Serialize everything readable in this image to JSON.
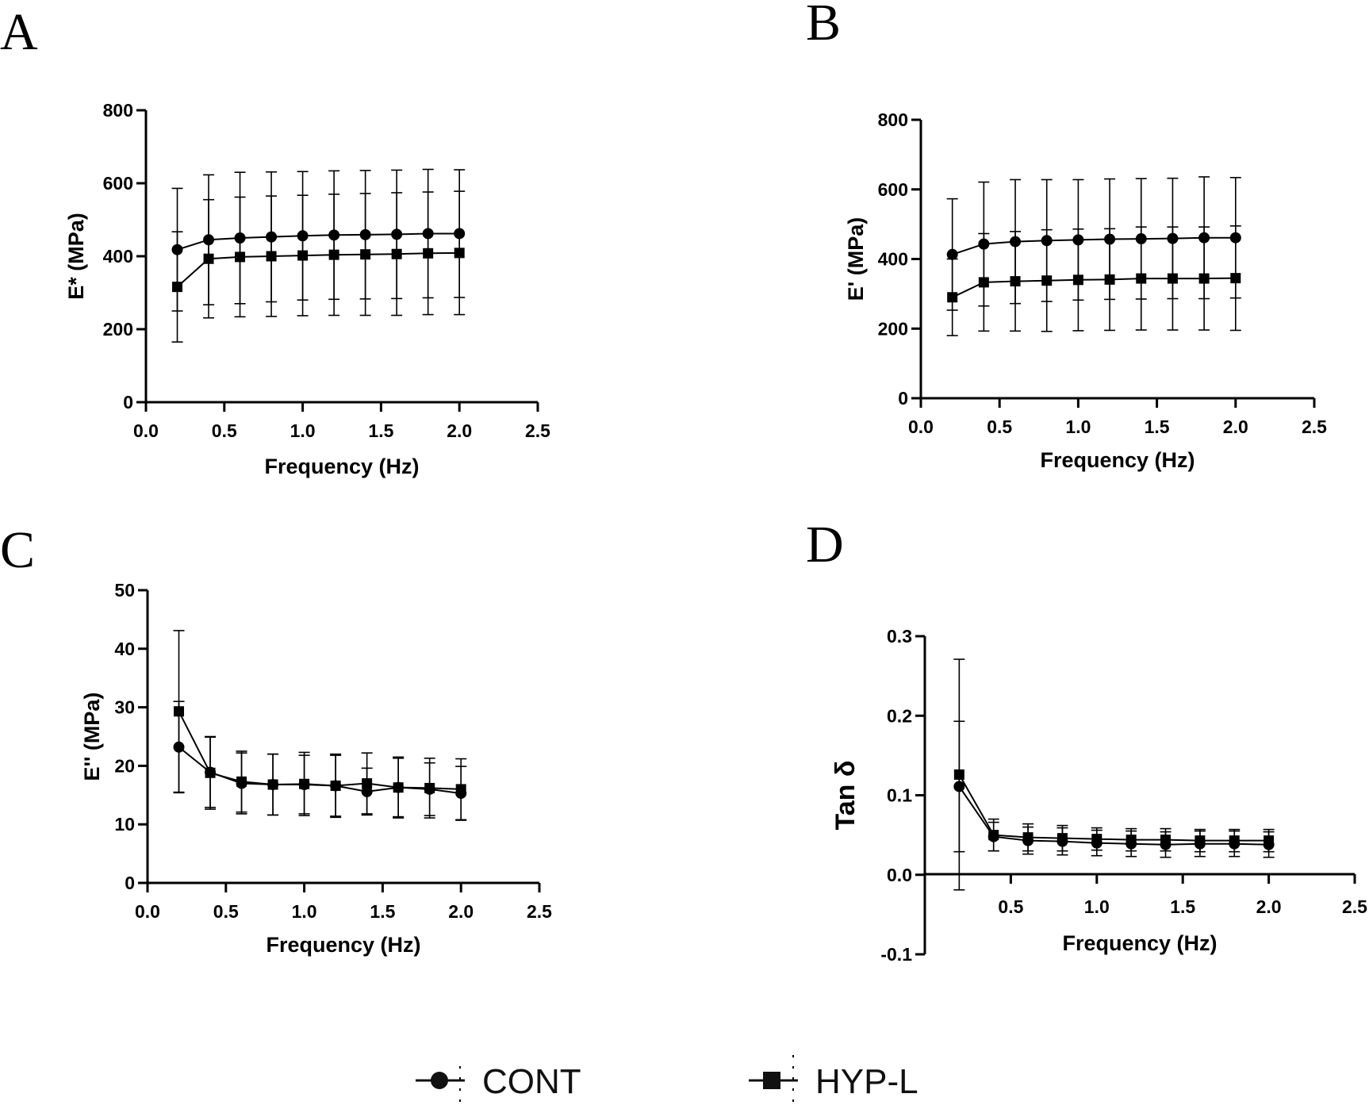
{
  "colors": {
    "ink": "#000000",
    "background": "#ffffff"
  },
  "legend": {
    "items": [
      {
        "label": "CONT",
        "marker": "circle"
      },
      {
        "label": "HYP-L",
        "marker": "square"
      }
    ]
  },
  "chart_data": [
    {
      "panel": "A",
      "type": "line",
      "xlabel": "Frequency (Hz)",
      "ylabel": "E* (MPa)",
      "xlim": [
        0,
        2.5
      ],
      "xticks": [
        "0.0",
        "0.5",
        "1.0",
        "1.5",
        "2.0",
        "2.5"
      ],
      "ylim": [
        0,
        800
      ],
      "yticks": [
        "0",
        "200",
        "400",
        "600",
        "800"
      ],
      "x": [
        0.2,
        0.4,
        0.6,
        0.8,
        1.0,
        1.2,
        1.4,
        1.6,
        1.8,
        2.0
      ],
      "series": [
        {
          "name": "CONT",
          "marker": "circle",
          "values": [
            418,
            445,
            450,
            453,
            456,
            458,
            459,
            460,
            462,
            462
          ],
          "error": [
            168,
            178,
            180,
            178,
            176,
            176,
            176,
            176,
            176,
            175
          ]
        },
        {
          "name": "HYP-L",
          "marker": "square",
          "values": [
            316,
            393,
            398,
            400,
            402,
            404,
            405,
            406,
            408,
            409
          ],
          "error": [
            151,
            162,
            164,
            165,
            165,
            166,
            167,
            168,
            168,
            169
          ]
        }
      ]
    },
    {
      "panel": "B",
      "type": "line",
      "xlabel": "Frequency (Hz)",
      "ylabel": "E' (MPa)",
      "xlim": [
        0,
        2.5
      ],
      "xticks": [
        "0.0",
        "0.5",
        "1.0",
        "1.5",
        "2.0",
        "2.5"
      ],
      "ylim": [
        0,
        800
      ],
      "yticks": [
        "0",
        "200",
        "400",
        "600",
        "800"
      ],
      "x": [
        0.2,
        0.4,
        0.6,
        0.8,
        1.0,
        1.2,
        1.4,
        1.6,
        1.8,
        2.0
      ],
      "series": [
        {
          "name": "CONT",
          "marker": "circle",
          "values": [
            413,
            443,
            450,
            453,
            455,
            457,
            458,
            459,
            461,
            461
          ],
          "error": [
            160,
            178,
            178,
            175,
            173,
            173,
            173,
            173,
            175,
            173
          ]
        },
        {
          "name": "HYP-L",
          "marker": "square",
          "values": [
            290,
            333,
            336,
            338,
            340,
            341,
            344,
            344,
            344,
            345
          ],
          "error": [
            110,
            140,
            143,
            146,
            146,
            146,
            148,
            148,
            148,
            150
          ]
        }
      ]
    },
    {
      "panel": "C",
      "type": "line",
      "xlabel": "Frequency (Hz)",
      "ylabel": "E'' (MPa)",
      "xlim": [
        0,
        2.5
      ],
      "xticks": [
        "0.0",
        "0.5",
        "1.0",
        "1.5",
        "2.0",
        "2.5"
      ],
      "ylim": [
        0,
        50
      ],
      "yticks": [
        "0",
        "10",
        "20",
        "30",
        "40",
        "50"
      ],
      "x": [
        0.2,
        0.4,
        0.6,
        0.8,
        1.0,
        1.2,
        1.4,
        1.6,
        1.8,
        2.0
      ],
      "series": [
        {
          "name": "CONT",
          "marker": "circle",
          "values": [
            23.2,
            18.9,
            17.0,
            16.8,
            16.8,
            16.6,
            15.6,
            16.3,
            16.0,
            15.3
          ],
          "error": [
            7.8,
            6.0,
            5.2,
            5.2,
            5.0,
            5.2,
            4.0,
            5.0,
            4.5,
            4.6
          ]
        },
        {
          "name": "HYP-L",
          "marker": "square",
          "values": [
            29.3,
            18.8,
            17.3,
            16.8,
            16.9,
            16.6,
            17.0,
            16.3,
            16.2,
            16.0
          ],
          "error": [
            13.8,
            6.2,
            5.2,
            5.2,
            5.4,
            5.4,
            5.2,
            5.2,
            5.1,
            5.2
          ]
        }
      ]
    },
    {
      "panel": "D",
      "type": "line",
      "xlabel": "Frequency (Hz)",
      "ylabel": "Tan δ",
      "xlim": [
        0,
        2.5
      ],
      "xticks": [
        "0.5",
        "1.0",
        "1.5",
        "2.0",
        "2.5"
      ],
      "ylim": [
        -0.1,
        0.3
      ],
      "yticks": [
        "-0.1",
        "0.0",
        "0.1",
        "0.2",
        "0.3"
      ],
      "x": [
        0.2,
        0.4,
        0.6,
        0.8,
        1.0,
        1.2,
        1.4,
        1.6,
        1.8,
        2.0
      ],
      "series": [
        {
          "name": "CONT",
          "marker": "circle",
          "values": [
            0.111,
            0.048,
            0.043,
            0.042,
            0.04,
            0.039,
            0.038,
            0.039,
            0.039,
            0.038
          ],
          "error": [
            0.082,
            0.018,
            0.017,
            0.017,
            0.016,
            0.016,
            0.016,
            0.016,
            0.016,
            0.016
          ]
        },
        {
          "name": "HYP-L",
          "marker": "square",
          "values": [
            0.126,
            0.05,
            0.047,
            0.046,
            0.045,
            0.044,
            0.044,
            0.043,
            0.043,
            0.043
          ],
          "error": [
            0.145,
            0.02,
            0.017,
            0.016,
            0.014,
            0.014,
            0.014,
            0.014,
            0.014,
            0.014
          ]
        }
      ]
    }
  ]
}
